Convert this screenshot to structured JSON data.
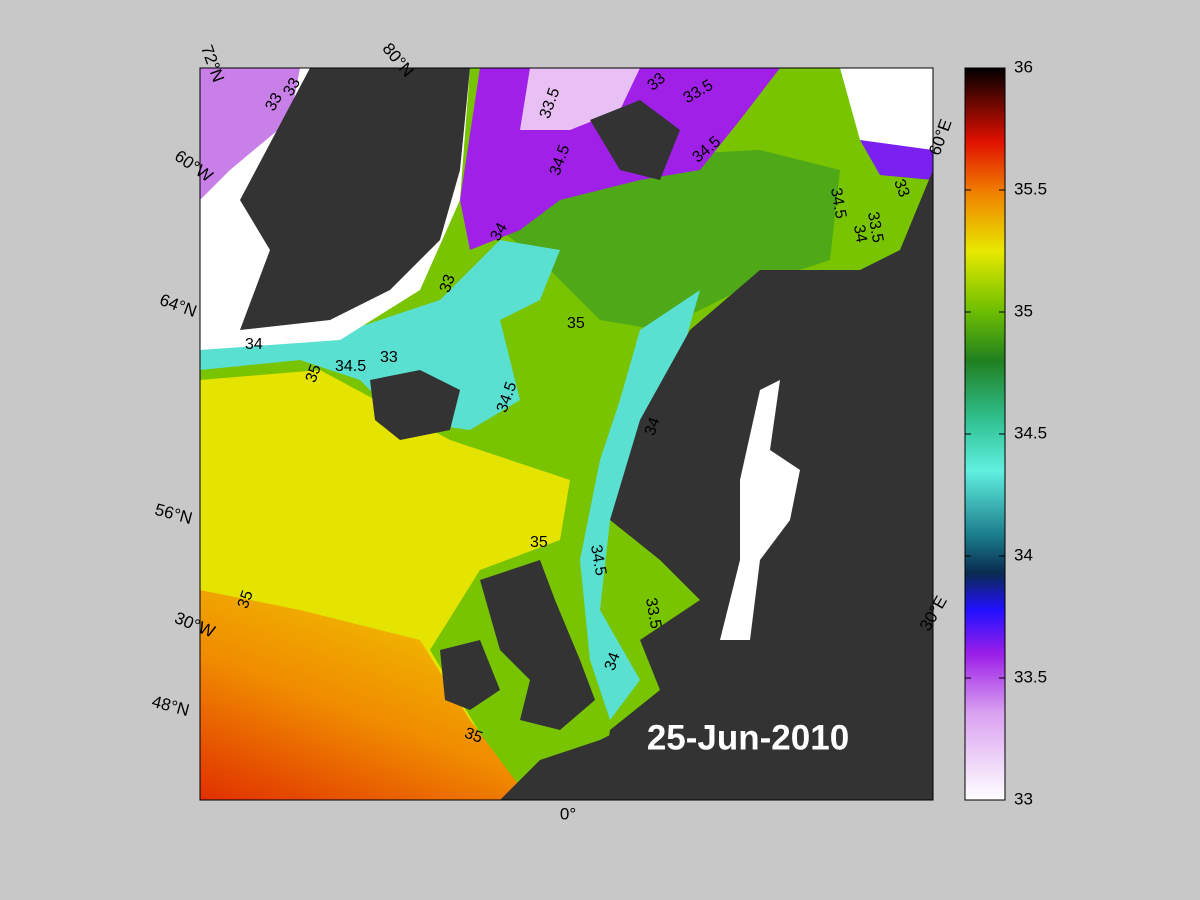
{
  "date_label": "25-Jun-2010",
  "graticule_labels": [
    "72°N",
    "80°N",
    "60°W",
    "64°N",
    "56°N",
    "30°W",
    "48°N",
    "0°",
    "60°E",
    "30°E"
  ],
  "contour_labels": [
    33,
    33,
    33,
    33.5,
    33.5,
    34.5,
    34.5,
    34,
    33,
    34.5,
    33.5,
    34,
    34,
    33,
    33,
    35,
    34.5,
    35,
    34.5,
    34,
    34.5,
    35,
    35,
    35,
    34,
    33.5,
    35
  ],
  "colorbar": {
    "range": [
      33,
      36
    ],
    "ticks": [
      33,
      33.5,
      34,
      34.5,
      35,
      35.5,
      36
    ]
  }
}
